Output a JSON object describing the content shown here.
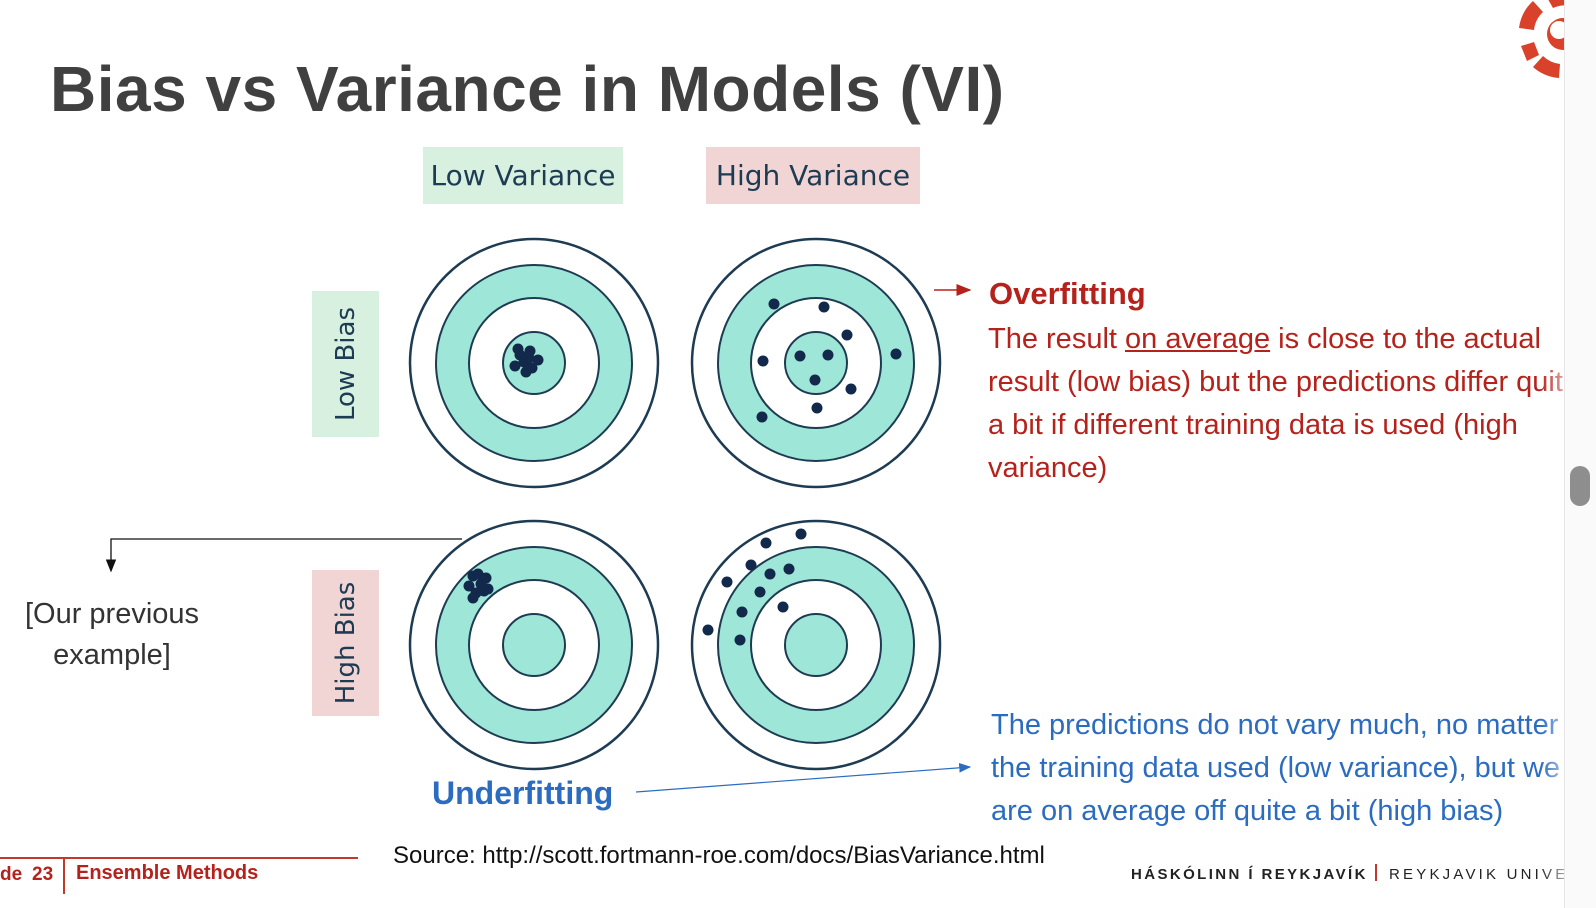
{
  "slide": {
    "title": "Bias vs Variance in Models (VI)"
  },
  "diagram": {
    "column_labels": [
      "Low Variance",
      "High Variance"
    ],
    "row_labels": [
      "Low Bias",
      "High Bias"
    ]
  },
  "overfitting": {
    "title": "Overfitting",
    "text_before": "The result ",
    "text_underlined": "on average",
    "text_after": " is close to the actual result (low bias) but the predictions differ quite a bit if different training data is used (high variance)"
  },
  "underfitting": {
    "title": "Underfitting",
    "text": "The predictions do not vary much, no matter the training data used (low variance), but we are on average off quite a bit (high bias)"
  },
  "previous_example": {
    "line1": "[Our previous",
    "line2": "example]"
  },
  "source": "Source: http://scott.fortmann-roe.com/docs/BiasVariance.html",
  "footer": {
    "slide_word": "de",
    "slide_number": "23",
    "topic": "Ensemble Methods",
    "university_is": "HÁSKÓLINN Í REYKJAVÍK",
    "university_en": "REYKJAVIK UNIVERSITY"
  },
  "colors": {
    "title": "#404040",
    "overfitting_red": "#b5221c",
    "underfitting_blue": "#2b6cc0",
    "target_teal": "#9ee6d8",
    "target_ring": "#1d3b52",
    "dot": "#13294b",
    "low_label_bg": "#d7f0e0",
    "high_label_bg": "#f1d5d5"
  },
  "icons": [
    "ru-logo-icon",
    "arrow-right-icon",
    "arrow-down-icon"
  ]
}
